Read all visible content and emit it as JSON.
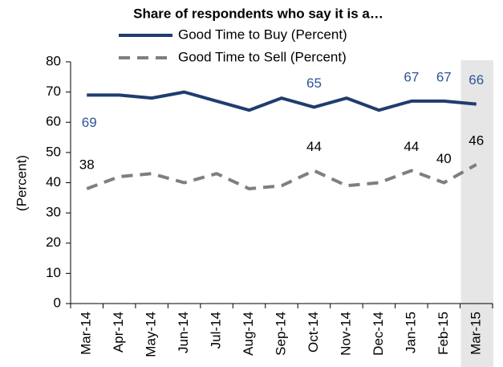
{
  "chart_data": {
    "type": "line",
    "title": "Share of respondents who say it is a…",
    "y_label": "(Percent)",
    "categories": [
      "Mar-14",
      "Apr-14",
      "May-14",
      "Jun-14",
      "Jul-14",
      "Aug-14",
      "Sep-14",
      "Oct-14",
      "Nov-14",
      "Dec-14",
      "Jan-15",
      "Feb-15",
      "Mar-15"
    ],
    "series": [
      {
        "name": "Good Time to Buy (Percent)",
        "color": "#1f3d6e",
        "dash": false,
        "values": [
          69,
          69,
          68,
          70,
          67,
          64,
          68,
          65,
          68,
          64,
          67,
          67,
          66
        ],
        "value_labels": [
          "69",
          null,
          null,
          null,
          null,
          null,
          null,
          "65",
          null,
          null,
          "67",
          "67",
          "66"
        ]
      },
      {
        "name": "Good Time to Sell (Percent)",
        "color": "#7f7f7f",
        "dash": true,
        "values": [
          38,
          42,
          43,
          40,
          43,
          38,
          39,
          44,
          39,
          40,
          44,
          40,
          46
        ],
        "value_labels": [
          "38",
          null,
          null,
          null,
          null,
          null,
          null,
          "44",
          null,
          null,
          "44",
          "40",
          "46"
        ]
      }
    ],
    "ylim": [
      0,
      80
    ],
    "yticks": [
      0,
      10,
      20,
      30,
      40,
      50,
      60,
      70,
      80
    ],
    "shaded_category": "Mar-15",
    "grid": false
  }
}
